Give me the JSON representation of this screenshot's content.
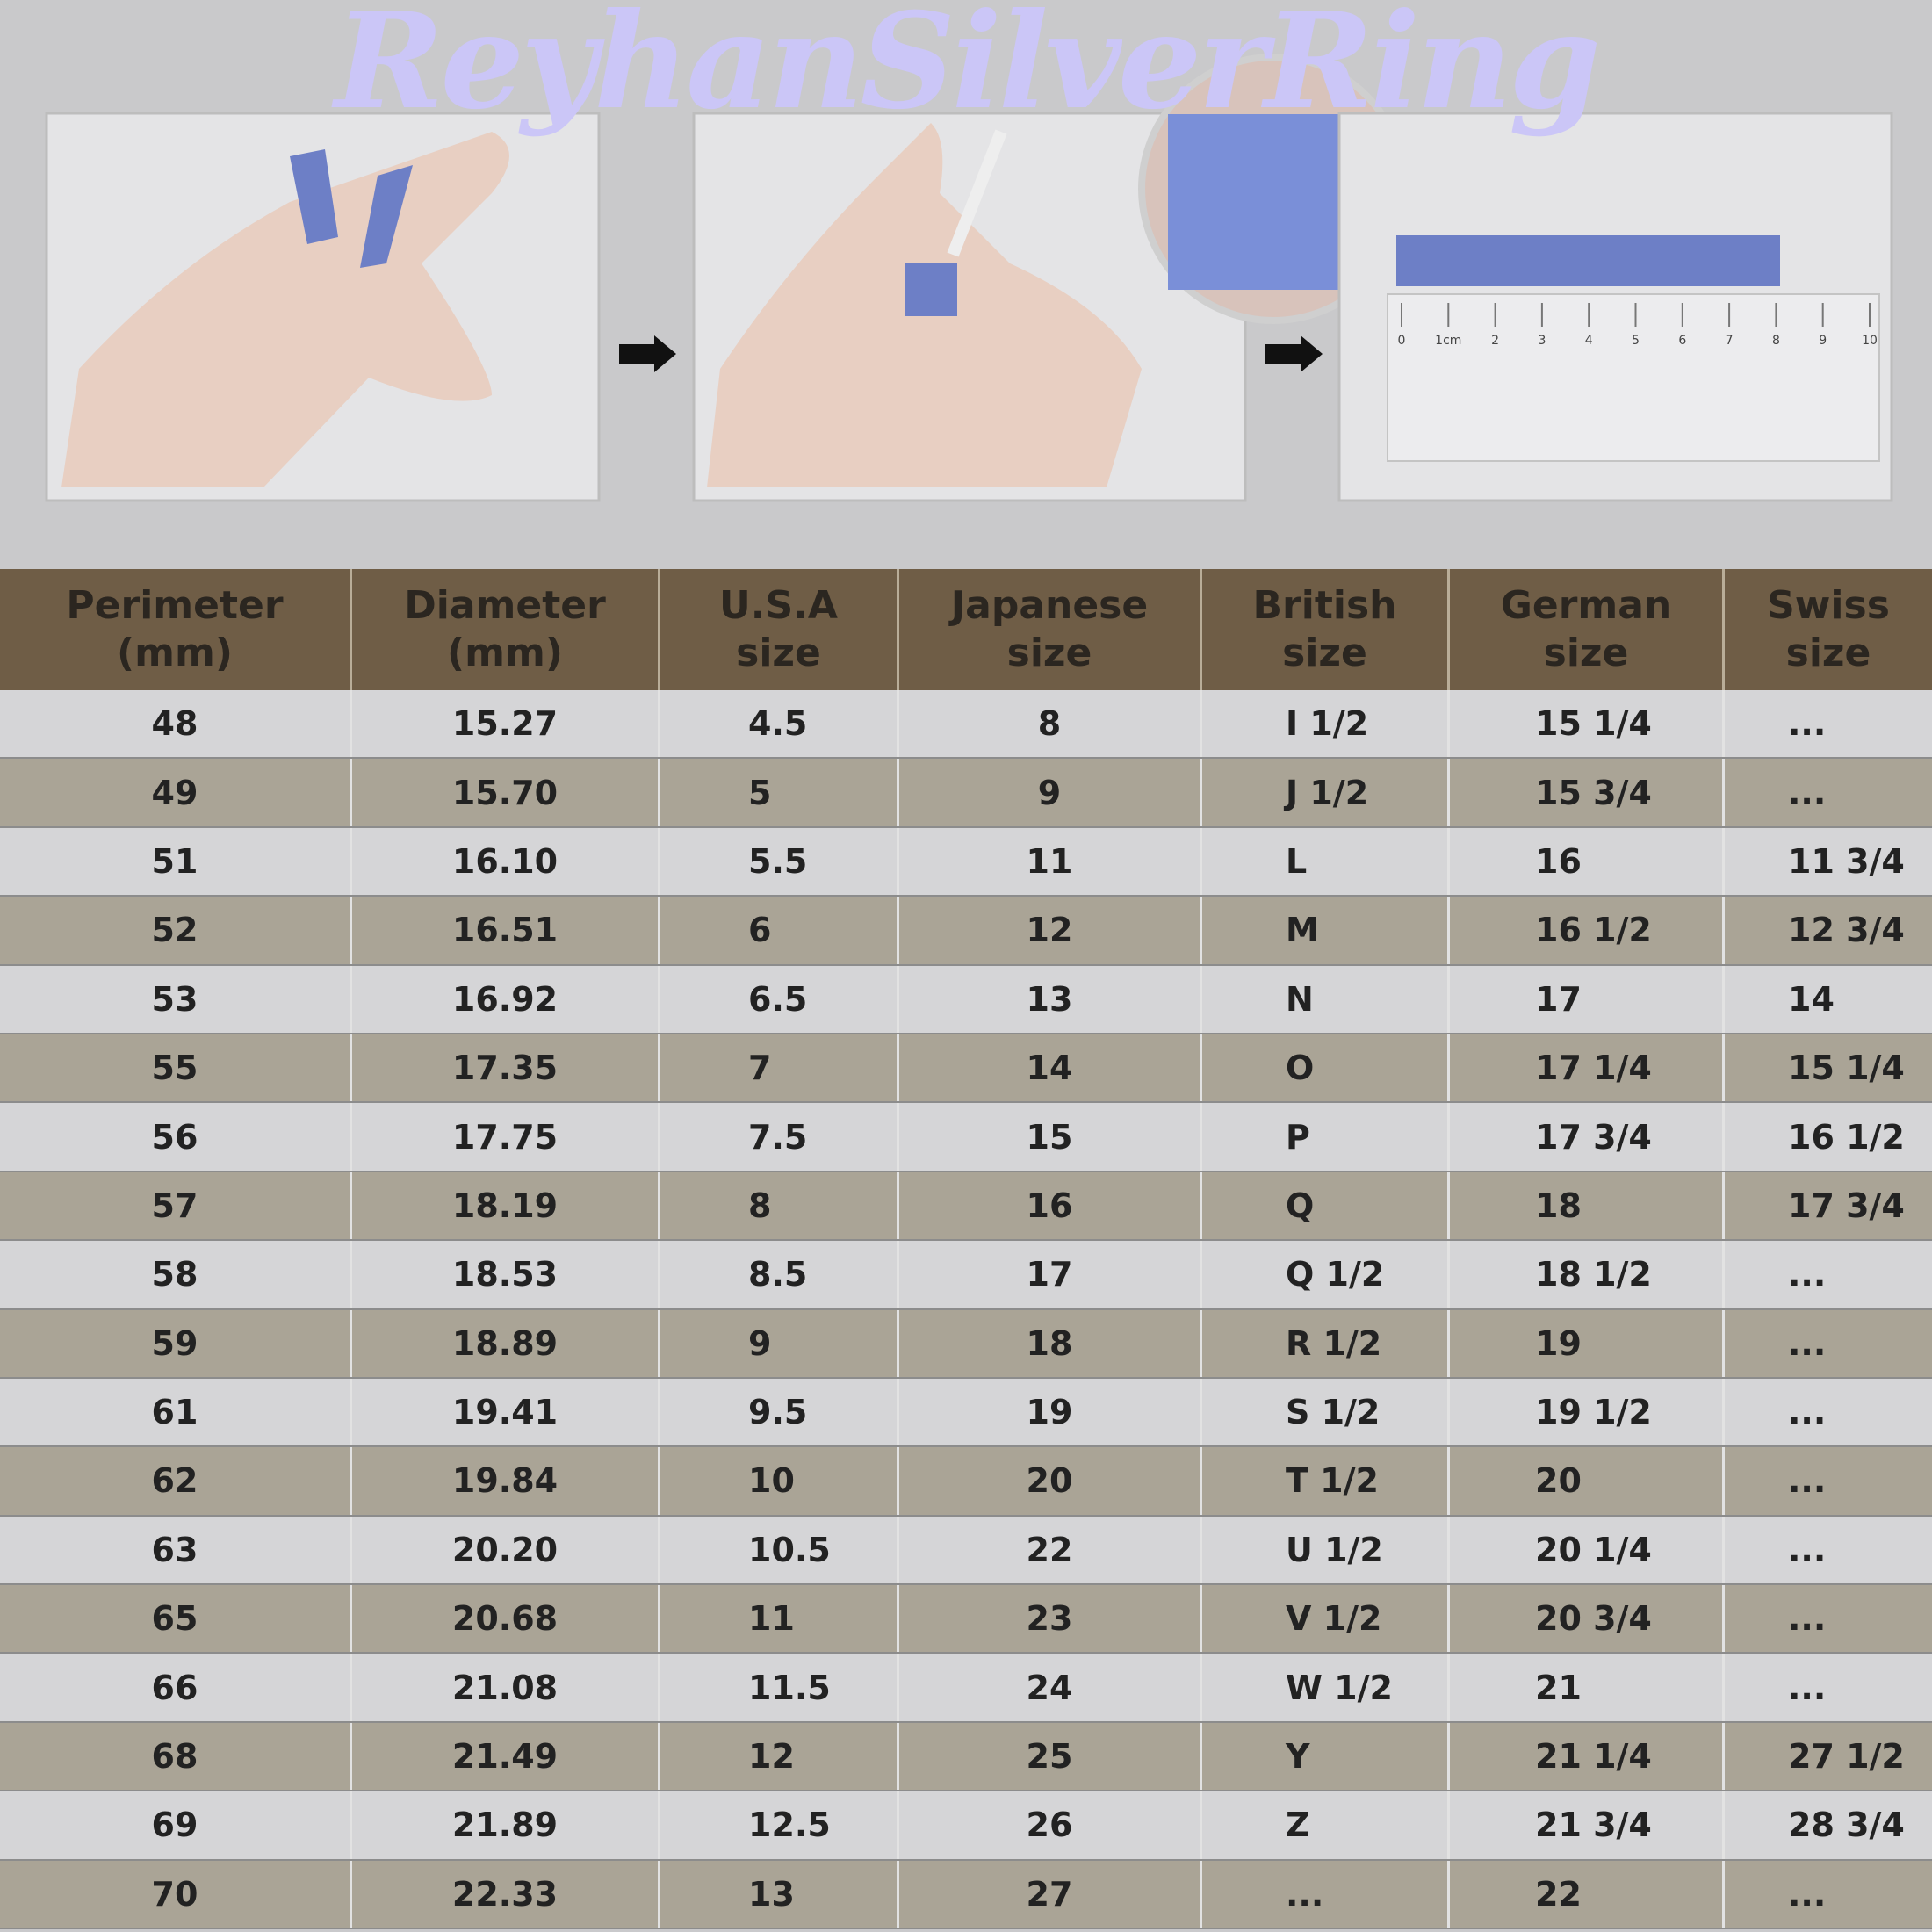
{
  "header": {
    "title": "ReyhanSilverRing"
  },
  "ruler": {
    "labels": [
      "0",
      "1cm",
      "2",
      "3",
      "4",
      "5",
      "6",
      "7",
      "8",
      "9",
      "10"
    ]
  },
  "table": {
    "columns": [
      [
        "Perimeter",
        "(mm)"
      ],
      [
        "Diameter",
        "(mm)"
      ],
      [
        "U.S.A",
        "size"
      ],
      [
        "Japanese",
        "size"
      ],
      [
        "British",
        "size"
      ],
      [
        "German",
        "size"
      ],
      [
        "Swiss",
        "size"
      ]
    ],
    "rows": [
      [
        "48",
        "15.27",
        "4.5",
        "8",
        "I 1/2",
        "15 1/4",
        "..."
      ],
      [
        "49",
        "15.70",
        "5",
        "9",
        "J 1/2",
        "15 3/4",
        "..."
      ],
      [
        "51",
        "16.10",
        "5.5",
        "11",
        "L",
        "16",
        "11 3/4"
      ],
      [
        "52",
        "16.51",
        "6",
        "12",
        "M",
        "16 1/2",
        "12 3/4"
      ],
      [
        "53",
        "16.92",
        "6.5",
        "13",
        "N",
        "17",
        "14"
      ],
      [
        "55",
        "17.35",
        "7",
        "14",
        "O",
        "17 1/4",
        "15 1/4"
      ],
      [
        "56",
        "17.75",
        "7.5",
        "15",
        "P",
        "17 3/4",
        "16 1/2"
      ],
      [
        "57",
        "18.19",
        "8",
        "16",
        "Q",
        "18",
        "17 3/4"
      ],
      [
        "58",
        "18.53",
        "8.5",
        "17",
        "Q 1/2",
        "18 1/2",
        "..."
      ],
      [
        "59",
        "18.89",
        "9",
        "18",
        "R 1/2",
        "19",
        "..."
      ],
      [
        "61",
        "19.41",
        "9.5",
        "19",
        "S 1/2",
        "19 1/2",
        "..."
      ],
      [
        "62",
        "19.84",
        "10",
        "20",
        "T 1/2",
        "20",
        "..."
      ],
      [
        "63",
        "20.20",
        "10.5",
        "22",
        "U 1/2",
        "20 1/4",
        "..."
      ],
      [
        "65",
        "20.68",
        "11",
        "23",
        "V 1/2",
        "20 3/4",
        "..."
      ],
      [
        "66",
        "21.08",
        "11.5",
        "24",
        "W 1/2",
        "21",
        "..."
      ],
      [
        "68",
        "21.49",
        "12",
        "25",
        "Y",
        "21 1/4",
        "27 1/2"
      ],
      [
        "69",
        "21.89",
        "12.5",
        "26",
        "Z",
        "21 3/4",
        "28 3/4"
      ],
      [
        "70",
        "22.33",
        "13",
        "27",
        "...",
        "22",
        "..."
      ]
    ]
  }
}
